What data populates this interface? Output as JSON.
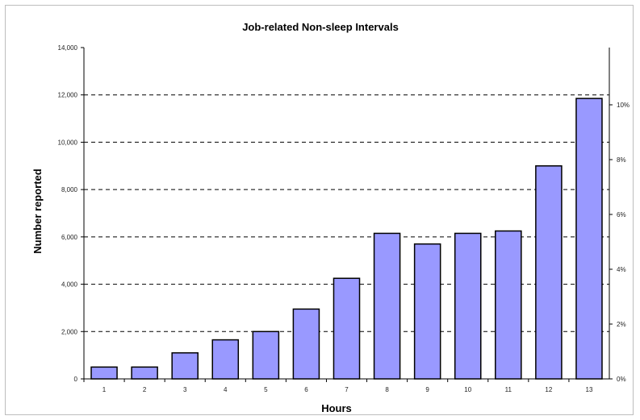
{
  "chart_data": {
    "type": "bar",
    "title": "Job-related Non-sleep Intervals",
    "xlabel": "Hours",
    "ylabel": "Number reported",
    "categories": [
      "1",
      "2",
      "3",
      "4",
      "5",
      "6",
      "7",
      "8",
      "9",
      "10",
      "11",
      "12",
      "13"
    ],
    "values": [
      500,
      500,
      1100,
      1650,
      2000,
      2950,
      4250,
      6150,
      5700,
      6150,
      6250,
      9000,
      11850
    ],
    "ylim": [
      0,
      14000
    ],
    "yticks": [
      "0",
      "2,000",
      "4,000",
      "6,000",
      "8,000",
      "10,000",
      "12,000",
      "14,000"
    ],
    "y2ticks": [
      "0%",
      "2%",
      "4%",
      "6%",
      "8%",
      "10%"
    ],
    "grid": "horizontal-dashed",
    "legend": "none",
    "colors": {
      "bar_fill": "#9999ff",
      "bar_stroke": "#000000",
      "grid": "#000000"
    }
  }
}
